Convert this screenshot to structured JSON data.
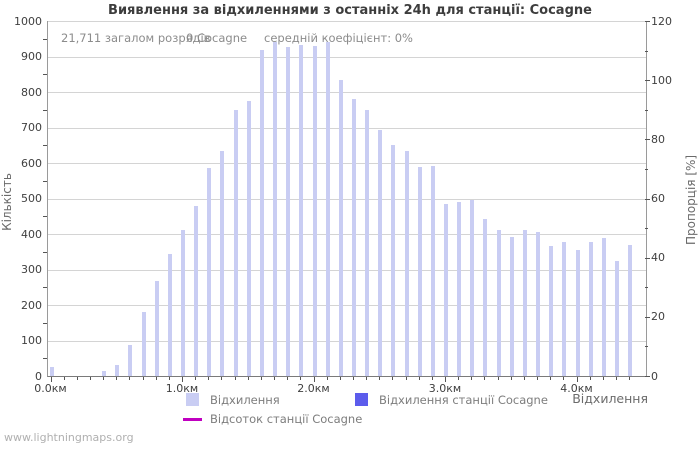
{
  "title": "Виявлення за відхиленнями з останніх 24h для станції: Cocagne",
  "stats": {
    "total": "21,711 загалом розрядів",
    "station": "0 Cocagne",
    "coefficient": "середній коефіцієнт: 0%"
  },
  "axes": {
    "left_label": "Кількість",
    "right_label": "Пропорція [%]",
    "x_axis_label": "Відхилення",
    "left_ticks": [
      0,
      100,
      200,
      300,
      400,
      500,
      600,
      700,
      800,
      900,
      1000
    ],
    "right_ticks": [
      0,
      20,
      40,
      60,
      80,
      100,
      120
    ],
    "x_major_ticks": [
      {
        "km": 0,
        "label": "0.0км"
      },
      {
        "km": 1,
        "label": "1.0км"
      },
      {
        "km": 2,
        "label": "2.0км"
      },
      {
        "km": 3,
        "label": "3.0км"
      },
      {
        "km": 4,
        "label": "4.0км"
      }
    ]
  },
  "legend": {
    "deviation": {
      "label": "Відхилення",
      "color": "#c9cdf3"
    },
    "station": {
      "label": "Відхилення станції Cocagne",
      "color": "#5c5cec"
    },
    "percent": {
      "label": "Відсоток станції Cocagne",
      "color": "#c000c0"
    }
  },
  "watermark": "www.lightningmaps.org",
  "chart_data": {
    "type": "bar",
    "title": "Виявлення за відхиленнями з останніх 24h для станції: Cocagne",
    "xlabel": "Відхилення",
    "ylabel": "Кількість",
    "y2label": "Пропорція [%]",
    "x_unit": "км",
    "ylim": [
      0,
      1000
    ],
    "y2lim": [
      0,
      120
    ],
    "xlim": [
      0,
      4.55
    ],
    "grid": true,
    "legend_position": "bottom",
    "x": [
      0.0,
      0.1,
      0.2,
      0.3,
      0.4,
      0.5,
      0.6,
      0.7,
      0.8,
      0.9,
      1.0,
      1.1,
      1.2,
      1.3,
      1.4,
      1.5,
      1.6,
      1.7,
      1.8,
      1.9,
      2.0,
      2.1,
      2.2,
      2.3,
      2.4,
      2.5,
      2.6,
      2.7,
      2.8,
      2.9,
      3.0,
      3.1,
      3.2,
      3.3,
      3.4,
      3.5,
      3.6,
      3.7,
      3.8,
      3.9,
      4.0,
      4.1,
      4.2,
      4.3,
      4.4
    ],
    "series": [
      {
        "name": "Відхилення",
        "axis": "left",
        "style": "bar",
        "color": "#c9cdf3",
        "values": [
          24,
          0,
          0,
          0,
          15,
          32,
          88,
          180,
          268,
          344,
          410,
          478,
          586,
          634,
          750,
          775,
          917,
          940,
          928,
          932,
          930,
          940,
          833,
          780,
          748,
          694,
          650,
          633,
          588,
          593,
          485,
          490,
          496,
          443,
          410,
          393,
          411,
          406,
          366,
          377,
          354,
          378,
          388,
          325,
          368
        ]
      },
      {
        "name": "Відхилення станції Cocagne",
        "axis": "left",
        "style": "bar",
        "color": "#5c5cec",
        "values": [
          0,
          0,
          0,
          0,
          0,
          0,
          0,
          0,
          0,
          0,
          0,
          0,
          0,
          0,
          0,
          0,
          0,
          0,
          0,
          0,
          0,
          0,
          0,
          0,
          0,
          0,
          0,
          0,
          0,
          0,
          0,
          0,
          0,
          0,
          0,
          0,
          0,
          0,
          0,
          0,
          0,
          0,
          0,
          0,
          0
        ]
      },
      {
        "name": "Відсоток станції Cocagne",
        "axis": "right",
        "style": "line",
        "color": "#c000c0",
        "values": [
          0,
          0,
          0,
          0,
          0,
          0,
          0,
          0,
          0,
          0,
          0,
          0,
          0,
          0,
          0,
          0,
          0,
          0,
          0,
          0,
          0,
          0,
          0,
          0,
          0,
          0,
          0,
          0,
          0,
          0,
          0,
          0,
          0,
          0,
          0,
          0,
          0,
          0,
          0,
          0,
          0,
          0,
          0,
          0,
          0
        ]
      }
    ]
  }
}
